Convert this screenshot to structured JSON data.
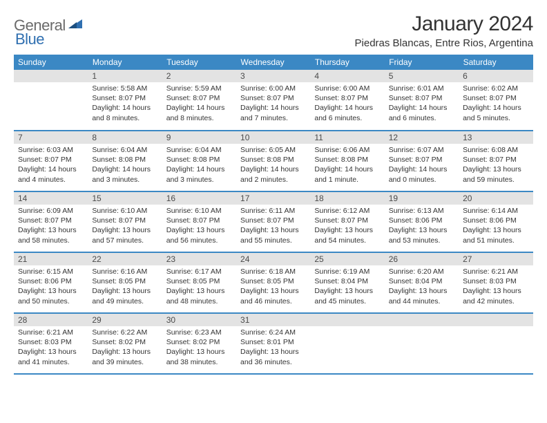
{
  "brand": {
    "part1": "General",
    "part2": "Blue"
  },
  "title": "January 2024",
  "location": "Piedras Blancas, Entre Rios, Argentina",
  "daynames": [
    "Sunday",
    "Monday",
    "Tuesday",
    "Wednesday",
    "Thursday",
    "Friday",
    "Saturday"
  ],
  "colors": {
    "header_bg": "#3b88c4",
    "header_text": "#ffffff",
    "daynum_bg": "#e3e3e3",
    "row_border": "#3b88c4",
    "text": "#333333",
    "logo_gray": "#6a6a6a",
    "logo_blue": "#2f6fb0"
  },
  "weeks": [
    [
      {
        "n": "",
        "lines": []
      },
      {
        "n": "1",
        "lines": [
          "Sunrise: 5:58 AM",
          "Sunset: 8:07 PM",
          "Daylight: 14 hours",
          "and 8 minutes."
        ]
      },
      {
        "n": "2",
        "lines": [
          "Sunrise: 5:59 AM",
          "Sunset: 8:07 PM",
          "Daylight: 14 hours",
          "and 8 minutes."
        ]
      },
      {
        "n": "3",
        "lines": [
          "Sunrise: 6:00 AM",
          "Sunset: 8:07 PM",
          "Daylight: 14 hours",
          "and 7 minutes."
        ]
      },
      {
        "n": "4",
        "lines": [
          "Sunrise: 6:00 AM",
          "Sunset: 8:07 PM",
          "Daylight: 14 hours",
          "and 6 minutes."
        ]
      },
      {
        "n": "5",
        "lines": [
          "Sunrise: 6:01 AM",
          "Sunset: 8:07 PM",
          "Daylight: 14 hours",
          "and 6 minutes."
        ]
      },
      {
        "n": "6",
        "lines": [
          "Sunrise: 6:02 AM",
          "Sunset: 8:07 PM",
          "Daylight: 14 hours",
          "and 5 minutes."
        ]
      }
    ],
    [
      {
        "n": "7",
        "lines": [
          "Sunrise: 6:03 AM",
          "Sunset: 8:07 PM",
          "Daylight: 14 hours",
          "and 4 minutes."
        ]
      },
      {
        "n": "8",
        "lines": [
          "Sunrise: 6:04 AM",
          "Sunset: 8:08 PM",
          "Daylight: 14 hours",
          "and 3 minutes."
        ]
      },
      {
        "n": "9",
        "lines": [
          "Sunrise: 6:04 AM",
          "Sunset: 8:08 PM",
          "Daylight: 14 hours",
          "and 3 minutes."
        ]
      },
      {
        "n": "10",
        "lines": [
          "Sunrise: 6:05 AM",
          "Sunset: 8:08 PM",
          "Daylight: 14 hours",
          "and 2 minutes."
        ]
      },
      {
        "n": "11",
        "lines": [
          "Sunrise: 6:06 AM",
          "Sunset: 8:08 PM",
          "Daylight: 14 hours",
          "and 1 minute."
        ]
      },
      {
        "n": "12",
        "lines": [
          "Sunrise: 6:07 AM",
          "Sunset: 8:07 PM",
          "Daylight: 14 hours",
          "and 0 minutes."
        ]
      },
      {
        "n": "13",
        "lines": [
          "Sunrise: 6:08 AM",
          "Sunset: 8:07 PM",
          "Daylight: 13 hours",
          "and 59 minutes."
        ]
      }
    ],
    [
      {
        "n": "14",
        "lines": [
          "Sunrise: 6:09 AM",
          "Sunset: 8:07 PM",
          "Daylight: 13 hours",
          "and 58 minutes."
        ]
      },
      {
        "n": "15",
        "lines": [
          "Sunrise: 6:10 AM",
          "Sunset: 8:07 PM",
          "Daylight: 13 hours",
          "and 57 minutes."
        ]
      },
      {
        "n": "16",
        "lines": [
          "Sunrise: 6:10 AM",
          "Sunset: 8:07 PM",
          "Daylight: 13 hours",
          "and 56 minutes."
        ]
      },
      {
        "n": "17",
        "lines": [
          "Sunrise: 6:11 AM",
          "Sunset: 8:07 PM",
          "Daylight: 13 hours",
          "and 55 minutes."
        ]
      },
      {
        "n": "18",
        "lines": [
          "Sunrise: 6:12 AM",
          "Sunset: 8:07 PM",
          "Daylight: 13 hours",
          "and 54 minutes."
        ]
      },
      {
        "n": "19",
        "lines": [
          "Sunrise: 6:13 AM",
          "Sunset: 8:06 PM",
          "Daylight: 13 hours",
          "and 53 minutes."
        ]
      },
      {
        "n": "20",
        "lines": [
          "Sunrise: 6:14 AM",
          "Sunset: 8:06 PM",
          "Daylight: 13 hours",
          "and 51 minutes."
        ]
      }
    ],
    [
      {
        "n": "21",
        "lines": [
          "Sunrise: 6:15 AM",
          "Sunset: 8:06 PM",
          "Daylight: 13 hours",
          "and 50 minutes."
        ]
      },
      {
        "n": "22",
        "lines": [
          "Sunrise: 6:16 AM",
          "Sunset: 8:05 PM",
          "Daylight: 13 hours",
          "and 49 minutes."
        ]
      },
      {
        "n": "23",
        "lines": [
          "Sunrise: 6:17 AM",
          "Sunset: 8:05 PM",
          "Daylight: 13 hours",
          "and 48 minutes."
        ]
      },
      {
        "n": "24",
        "lines": [
          "Sunrise: 6:18 AM",
          "Sunset: 8:05 PM",
          "Daylight: 13 hours",
          "and 46 minutes."
        ]
      },
      {
        "n": "25",
        "lines": [
          "Sunrise: 6:19 AM",
          "Sunset: 8:04 PM",
          "Daylight: 13 hours",
          "and 45 minutes."
        ]
      },
      {
        "n": "26",
        "lines": [
          "Sunrise: 6:20 AM",
          "Sunset: 8:04 PM",
          "Daylight: 13 hours",
          "and 44 minutes."
        ]
      },
      {
        "n": "27",
        "lines": [
          "Sunrise: 6:21 AM",
          "Sunset: 8:03 PM",
          "Daylight: 13 hours",
          "and 42 minutes."
        ]
      }
    ],
    [
      {
        "n": "28",
        "lines": [
          "Sunrise: 6:21 AM",
          "Sunset: 8:03 PM",
          "Daylight: 13 hours",
          "and 41 minutes."
        ]
      },
      {
        "n": "29",
        "lines": [
          "Sunrise: 6:22 AM",
          "Sunset: 8:02 PM",
          "Daylight: 13 hours",
          "and 39 minutes."
        ]
      },
      {
        "n": "30",
        "lines": [
          "Sunrise: 6:23 AM",
          "Sunset: 8:02 PM",
          "Daylight: 13 hours",
          "and 38 minutes."
        ]
      },
      {
        "n": "31",
        "lines": [
          "Sunrise: 6:24 AM",
          "Sunset: 8:01 PM",
          "Daylight: 13 hours",
          "and 36 minutes."
        ]
      },
      {
        "n": "",
        "lines": []
      },
      {
        "n": "",
        "lines": []
      },
      {
        "n": "",
        "lines": []
      }
    ]
  ]
}
